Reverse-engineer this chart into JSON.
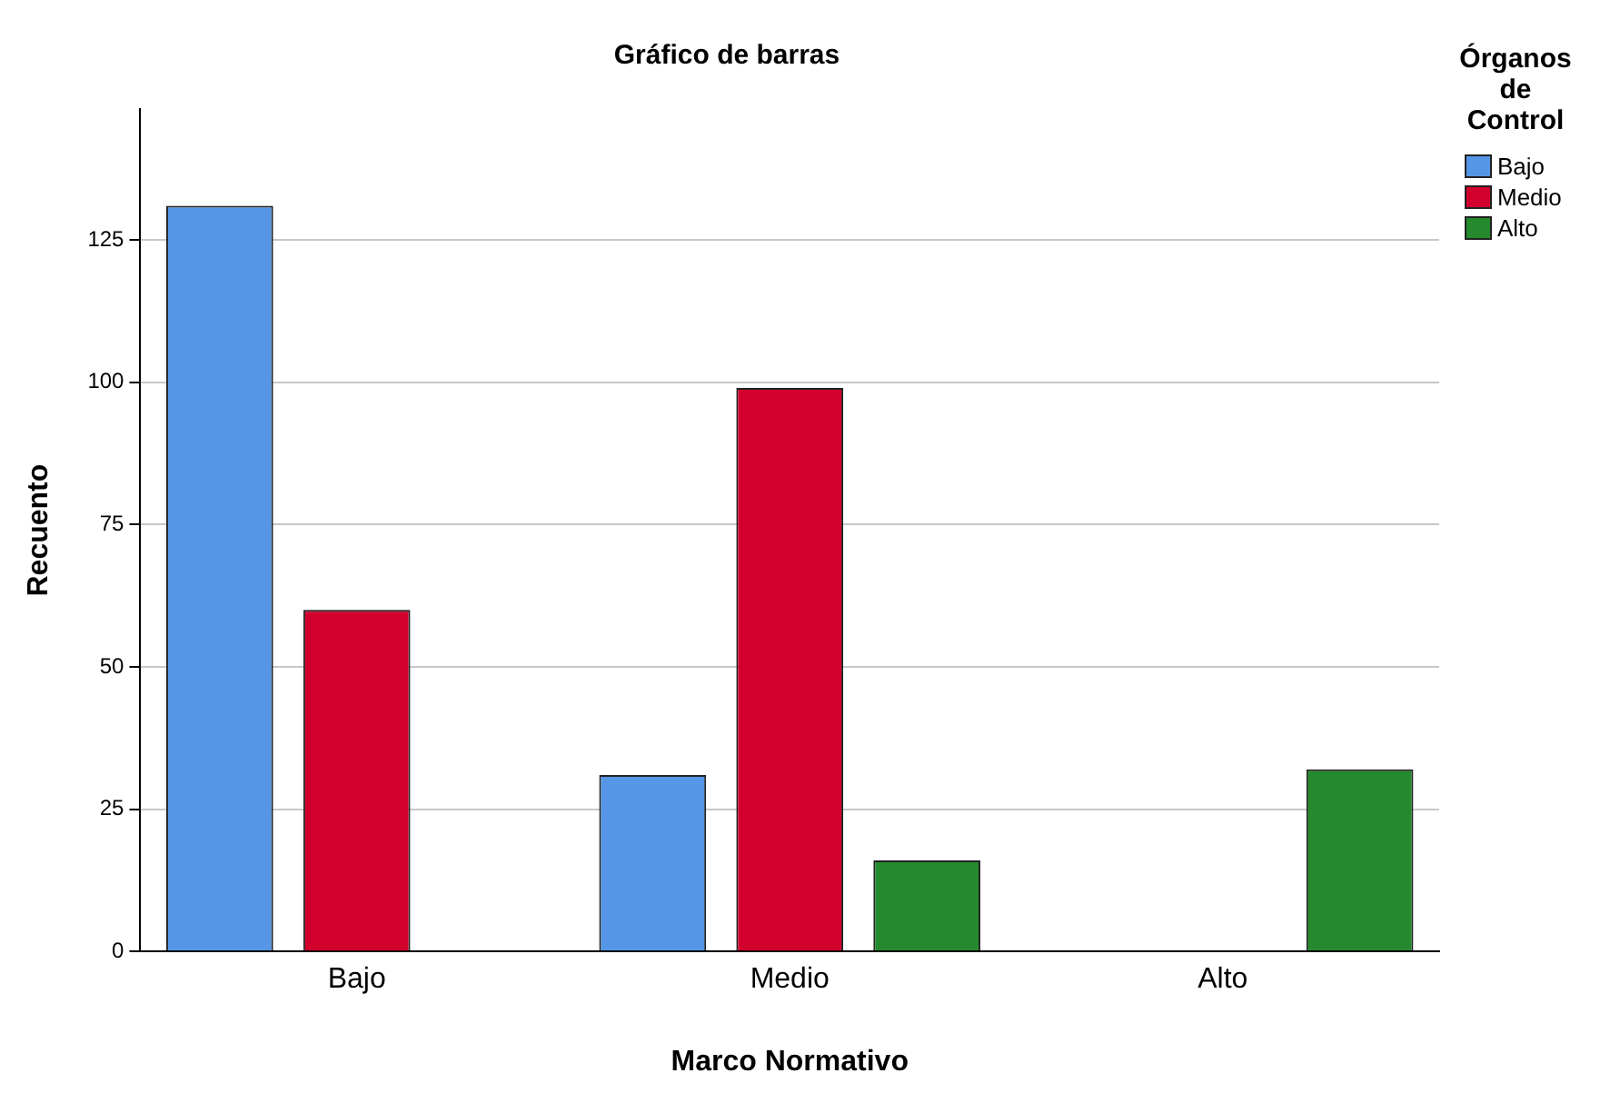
{
  "chart_data": {
    "type": "bar",
    "title": "Gráfico de barras",
    "xlabel": "Marco Normativo",
    "ylabel": "Recuento",
    "legend_title": "Órganos de Control",
    "categories": [
      "Bajo",
      "Medio",
      "Alto"
    ],
    "series": [
      {
        "name": "Bajo",
        "color": "#5596e6",
        "values": [
          131,
          31,
          null
        ]
      },
      {
        "name": "Medio",
        "color": "#d2002c",
        "values": [
          60,
          99,
          null
        ]
      },
      {
        "name": "Alto",
        "color": "#248a2d",
        "values": [
          null,
          16,
          32
        ]
      }
    ],
    "ylim": [
      0,
      148
    ],
    "yticks": [
      0,
      25,
      50,
      75,
      100,
      125
    ],
    "grid": "y",
    "legend": "top right"
  }
}
